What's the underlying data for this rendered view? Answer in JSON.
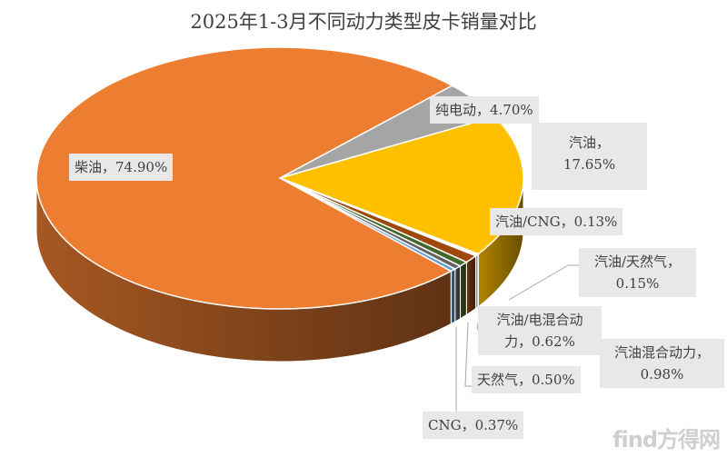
{
  "chart_data": {
    "type": "pie",
    "title": "2025年1-3月不同动力类型皮卡销量对比",
    "slices": [
      {
        "name": "纯电动",
        "value": 4.7,
        "label": "纯电动，4.70%",
        "color": "#A5A5A5"
      },
      {
        "name": "汽油",
        "value": 17.65,
        "label": "汽油，17.65%",
        "label_lines": [
          "汽油，",
          "17.65%"
        ],
        "color": "#FFC000"
      },
      {
        "name": "汽油/CNG",
        "value": 0.13,
        "label": "汽油/CNG，0.13%",
        "color": "#70AD47"
      },
      {
        "name": "汽油/天然气",
        "value": 0.15,
        "label": "汽油/天然气，0.15%",
        "label_lines": [
          "汽油/天然气，",
          "0.15%"
        ],
        "color": "#264478"
      },
      {
        "name": "汽油混合动力",
        "value": 0.98,
        "label": "汽油混合动力，0.98%",
        "label_lines": [
          "汽油混合动力，",
          "0.98%"
        ],
        "color": "#9E480E"
      },
      {
        "name": "汽油/电混合动力",
        "value": 0.62,
        "label": "汽油/电混合动力，0.62%",
        "label_lines": [
          "汽油/电混合动",
          "力，0.62%"
        ],
        "color": "#43682B"
      },
      {
        "name": "天然气",
        "value": 0.5,
        "label": "天然气，0.50%",
        "color": "#636363"
      },
      {
        "name": "CNG",
        "value": 0.37,
        "label": "CNG，0.37%",
        "color": "#5B9BD5"
      },
      {
        "name": "柴油",
        "value": 74.9,
        "label": "柴油，74.90%",
        "color": "#ED7D31"
      }
    ],
    "start_angle_deg": -45,
    "style": "3d"
  },
  "watermark": "find方得网"
}
